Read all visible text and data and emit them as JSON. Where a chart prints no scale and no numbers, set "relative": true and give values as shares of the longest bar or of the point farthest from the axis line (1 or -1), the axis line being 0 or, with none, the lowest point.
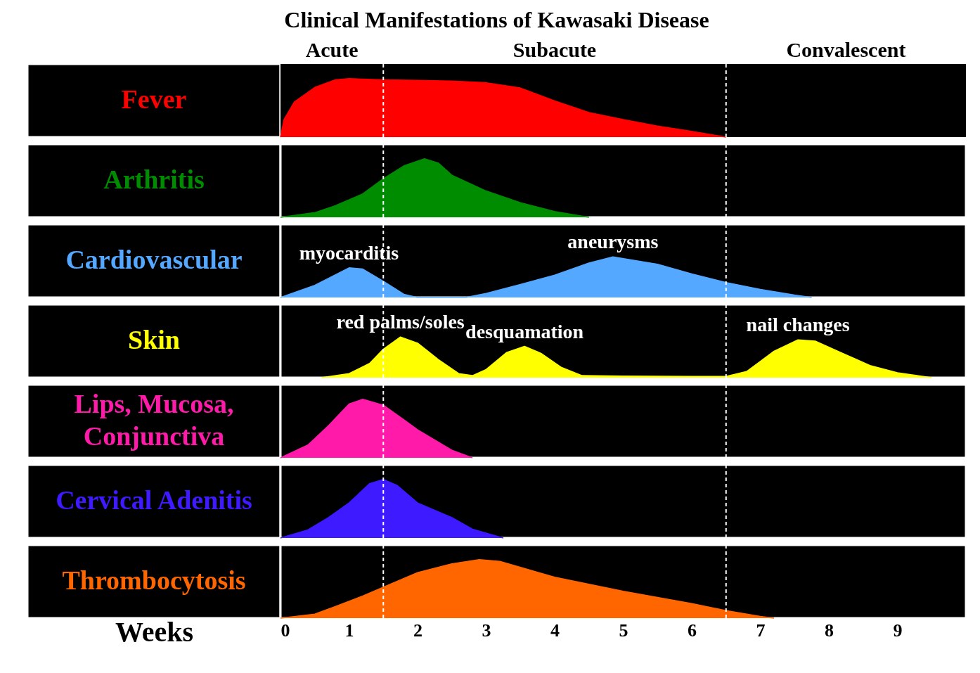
{
  "chart_data": [
    {
      "type": "area",
      "relative": true,
      "title": "Clinical Manifestations of Kawasaki Disease",
      "xlim": [
        0,
        10
      ],
      "tick_labels": false,
      "bands": [
        {
          "axis": "x",
          "from": 0,
          "to": 1.5,
          "label": "Acute",
          "color": "#000000"
        },
        {
          "axis": "x",
          "from": 1.5,
          "to": 6.5,
          "label": "Subacute",
          "color": "#000000"
        },
        {
          "axis": "x",
          "from": 6.5,
          "to": 10,
          "label": "Convalescent",
          "color": "#000000"
        }
      ],
      "ref_lines": [
        {
          "axis": "x",
          "value": 1.5,
          "color": "#ffffff",
          "line_style": "dashed"
        },
        {
          "axis": "x",
          "value": 6.5,
          "color": "#ffffff",
          "line_style": "dashed"
        }
      ],
      "series": [
        {
          "name": "Fever",
          "color": "#ff0000",
          "x": [
            0,
            0.05,
            0.2,
            0.5,
            0.8,
            1,
            1.5,
            2,
            2.5,
            3,
            3.5,
            4,
            4.5,
            5,
            5.5,
            6,
            6.4,
            6.5
          ],
          "values": [
            0,
            0.3,
            0.6,
            0.85,
            0.98,
            1,
            0.98,
            0.97,
            0.96,
            0.93,
            0.84,
            0.62,
            0.42,
            0.3,
            0.19,
            0.1,
            0.02,
            0
          ]
        }
      ]
    },
    {
      "type": "area",
      "relative": true,
      "xlim": [
        0,
        10
      ],
      "tick_labels": false,
      "ref_lines": [
        {
          "axis": "x",
          "value": 1.5,
          "color": "#ffffff",
          "line_style": "dashed"
        },
        {
          "axis": "x",
          "value": 6.5,
          "color": "#ffffff",
          "line_style": "dashed"
        }
      ],
      "series": [
        {
          "name": "Arthritis",
          "color": "#008c00",
          "x": [
            0,
            0.5,
            0.8,
            1.2,
            1.5,
            1.8,
            2.1,
            2.3,
            2.5,
            3,
            3.5,
            4,
            4.5
          ],
          "values": [
            0,
            0.08,
            0.2,
            0.4,
            0.66,
            0.88,
            1,
            0.93,
            0.72,
            0.45,
            0.25,
            0.1,
            0
          ]
        }
      ]
    },
    {
      "type": "area",
      "relative": true,
      "xlim": [
        0,
        10
      ],
      "tick_labels": false,
      "annotations": [
        {
          "text": "myocarditis",
          "x": 1,
          "y": 0.73
        },
        {
          "text": "aneurysms",
          "x": 4.85,
          "y": 1
        }
      ],
      "ref_lines": [
        {
          "axis": "x",
          "value": 1.5,
          "color": "#ffffff",
          "line_style": "dashed"
        },
        {
          "axis": "x",
          "value": 6.5,
          "color": "#ffffff",
          "line_style": "dashed"
        }
      ],
      "series": [
        {
          "name": "Cardiovascular",
          "color": "#55a8ff",
          "x": [
            0,
            0.5,
            1,
            1.2,
            1.5,
            1.8,
            2,
            2.7,
            3,
            3.5,
            4,
            4.5,
            4.85,
            5.5,
            6,
            6.5,
            7,
            7.5,
            7.75
          ],
          "values": [
            0,
            0.3,
            0.73,
            0.7,
            0.4,
            0.08,
            0,
            0,
            0.1,
            0.32,
            0.55,
            0.85,
            1,
            0.82,
            0.58,
            0.37,
            0.2,
            0.06,
            0
          ]
        }
      ]
    },
    {
      "type": "area",
      "relative": true,
      "xlim": [
        0,
        10
      ],
      "tick_labels": false,
      "annotations": [
        {
          "text": "red palms/soles",
          "x": 1.75,
          "y": 1
        },
        {
          "text": "desquamation",
          "x": 3.56,
          "y": 0.77
        },
        {
          "text": "nail changes",
          "x": 7.55,
          "y": 0.93
        }
      ],
      "ref_lines": [
        {
          "axis": "x",
          "value": 1.5,
          "color": "#ffffff",
          "line_style": "dashed"
        },
        {
          "axis": "x",
          "value": 6.5,
          "color": "#ffffff",
          "line_style": "dashed"
        }
      ],
      "series": [
        {
          "name": "Skin",
          "color": "#ffff00",
          "x": [
            0.6,
            1,
            1.3,
            1.5,
            1.75,
            2,
            2.3,
            2.6,
            2.8,
            3,
            3.3,
            3.56,
            3.8,
            4.1,
            4.4,
            5,
            6,
            6.5,
            6.8,
            7.2,
            7.55,
            7.8,
            8.2,
            8.6,
            9,
            9.5
          ],
          "values": [
            0,
            0.1,
            0.35,
            0.7,
            1,
            0.85,
            0.45,
            0.1,
            0.05,
            0.2,
            0.62,
            0.77,
            0.6,
            0.25,
            0.05,
            0.04,
            0.03,
            0.03,
            0.15,
            0.65,
            0.93,
            0.9,
            0.6,
            0.3,
            0.12,
            0
          ]
        }
      ]
    },
    {
      "type": "area",
      "relative": true,
      "xlim": [
        0,
        10
      ],
      "tick_labels": false,
      "ref_lines": [
        {
          "axis": "x",
          "value": 1.5,
          "color": "#ffffff",
          "line_style": "dashed"
        },
        {
          "axis": "x",
          "value": 6.5,
          "color": "#ffffff",
          "line_style": "dashed"
        }
      ],
      "series": [
        {
          "name": "Lips, Mucosa, Conjunctiva",
          "color": "#ff1aaa",
          "x": [
            0,
            0.4,
            0.7,
            1,
            1.2,
            1.5,
            1.8,
            2,
            2.5,
            2.8
          ],
          "values": [
            0,
            0.22,
            0.55,
            0.92,
            1,
            0.9,
            0.65,
            0.48,
            0.13,
            0
          ]
        }
      ]
    },
    {
      "type": "area",
      "relative": true,
      "xlim": [
        0,
        10
      ],
      "tick_labels": false,
      "ref_lines": [
        {
          "axis": "x",
          "value": 1.5,
          "color": "#ffffff",
          "line_style": "dashed"
        },
        {
          "axis": "x",
          "value": 6.5,
          "color": "#ffffff",
          "line_style": "dashed"
        }
      ],
      "series": [
        {
          "name": "Cervical Adenitis",
          "color": "#3d1aff",
          "x": [
            0,
            0.4,
            0.7,
            1,
            1.3,
            1.5,
            1.7,
            2,
            2.5,
            2.8,
            3.25
          ],
          "values": [
            0,
            0.14,
            0.35,
            0.6,
            0.93,
            1,
            0.9,
            0.6,
            0.35,
            0.15,
            0
          ]
        }
      ]
    },
    {
      "type": "area",
      "relative": true,
      "xlim": [
        0,
        10
      ],
      "xticks": [
        0,
        1,
        2,
        3,
        4,
        5,
        6,
        7,
        8,
        9
      ],
      "xlabel": "Weeks",
      "tick_labels": "x",
      "ref_lines": [
        {
          "axis": "x",
          "value": 1.5,
          "color": "#ffffff",
          "line_style": "dashed"
        },
        {
          "axis": "x",
          "value": 6.5,
          "color": "#ffffff",
          "line_style": "dashed"
        }
      ],
      "series": [
        {
          "name": "Thrombocytosis",
          "color": "#ff6600",
          "x": [
            0,
            0.5,
            0.8,
            1.2,
            1.5,
            2,
            2.5,
            2.9,
            3.2,
            4,
            5,
            6,
            6.5,
            7,
            7.2
          ],
          "values": [
            0,
            0.07,
            0.2,
            0.38,
            0.53,
            0.78,
            0.93,
            1,
            0.97,
            0.7,
            0.46,
            0.25,
            0.13,
            0.03,
            0
          ]
        }
      ]
    }
  ]
}
